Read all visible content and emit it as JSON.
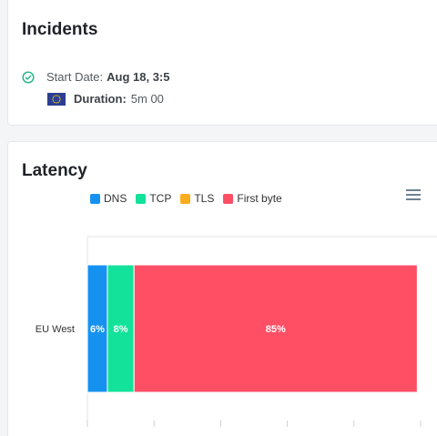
{
  "incidents": {
    "title": "Incidents",
    "start_label": "Start Date:",
    "start_value": "Aug 18, 3:5",
    "duration_label": "Duration:",
    "duration_value": "5m 00",
    "check_icon": "check-circle-icon",
    "flag_icon": "eu-flag-icon"
  },
  "latency": {
    "title": "Latency",
    "menu_icon": "hamburger-menu-icon"
  },
  "chart_data": {
    "type": "bar",
    "orientation": "horizontal",
    "stacked": true,
    "stack_mode": "percent",
    "categories": [
      "EU West"
    ],
    "series": [
      {
        "name": "DNS",
        "values": [
          6
        ],
        "label": "6%",
        "color": "#1592f0"
      },
      {
        "name": "TCP",
        "values": [
          8
        ],
        "label": "8%",
        "color": "#13e29a"
      },
      {
        "name": "TLS",
        "values": [
          0
        ],
        "label": "",
        "color": "#fbad1e"
      },
      {
        "name": "First byte",
        "values": [
          85
        ],
        "label": "85%",
        "color": "#fe4f65"
      }
    ],
    "xlim": [
      0,
      100
    ],
    "legend": "top-left",
    "grid": false
  }
}
